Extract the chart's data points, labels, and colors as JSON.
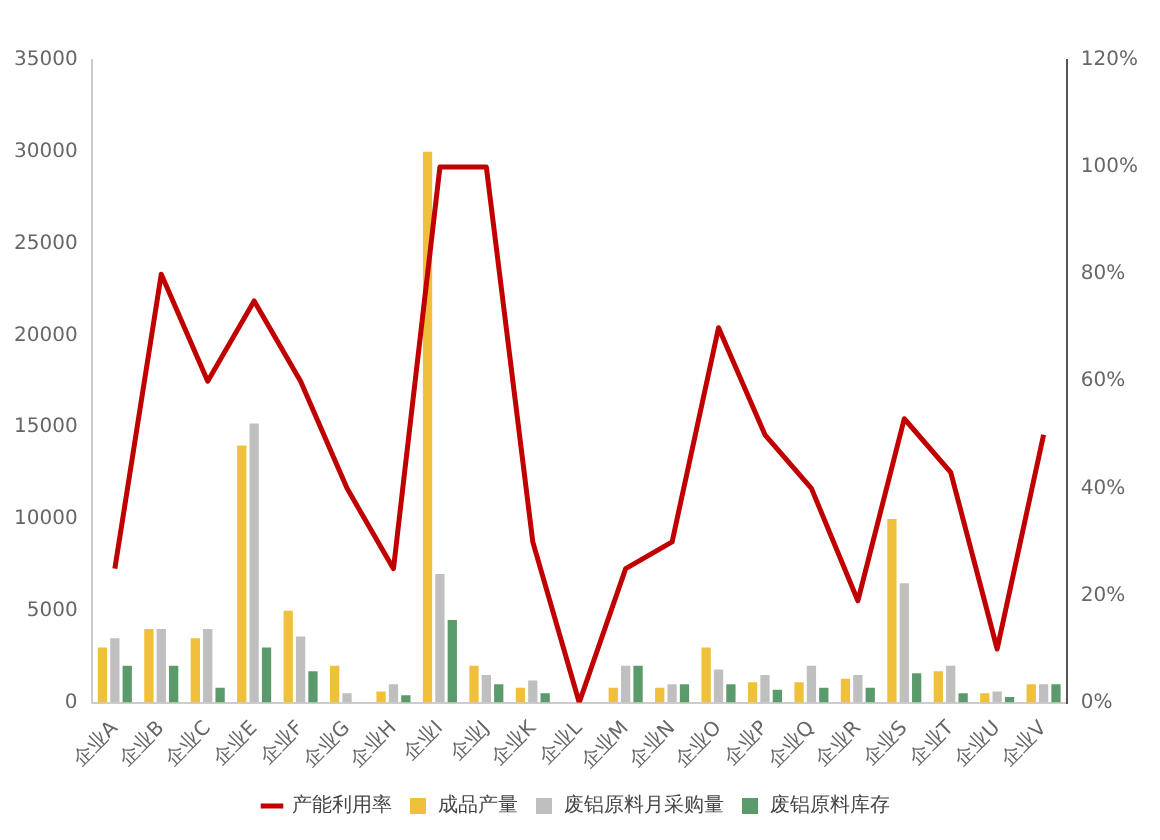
{
  "chart_data": {
    "type": "bar",
    "categories": [
      "企业A",
      "企业B",
      "企业C",
      "企业E",
      "企业F",
      "企业G",
      "企业H",
      "企业I",
      "企业J",
      "企业K",
      "企业L",
      "企业M",
      "企业N",
      "企业O",
      "企业P",
      "企业Q",
      "企业R",
      "企业S",
      "企业T",
      "企业U",
      "企业V"
    ],
    "series": [
      {
        "name": "成品产量",
        "color": "#f0bf3c",
        "values": [
          3000,
          4000,
          3500,
          14000,
          5000,
          2000,
          600,
          30000,
          2000,
          800,
          0,
          800,
          800,
          3000,
          1100,
          1100,
          1300,
          10000,
          1700,
          500,
          1000
        ]
      },
      {
        "name": "废铝原料月采购量",
        "color": "#bfbfbf",
        "values": [
          3500,
          4000,
          4000,
          15200,
          3600,
          500,
          1000,
          7000,
          1500,
          1200,
          0,
          2000,
          1000,
          1800,
          1500,
          2000,
          1500,
          6500,
          2000,
          600,
          1000
        ]
      },
      {
        "name": "废铝原料库存",
        "color": "#5b9b6b",
        "values": [
          2000,
          2000,
          800,
          3000,
          1700,
          0,
          400,
          4500,
          1000,
          500,
          0,
          2000,
          1000,
          1000,
          700,
          800,
          800,
          1600,
          500,
          300,
          1000
        ]
      },
      {
        "name": "产能利用率",
        "type": "line",
        "axis": "y2",
        "color": "#c00000",
        "values": [
          25,
          80,
          60,
          75,
          60,
          40,
          25,
          100,
          100,
          30,
          0,
          25,
          30,
          70,
          50,
          40,
          19,
          53,
          43,
          10,
          50
        ]
      }
    ],
    "ylim": [
      0,
      35000
    ],
    "yticks": [
      0,
      5000,
      10000,
      15000,
      20000,
      25000,
      30000,
      35000
    ],
    "y2lim": [
      0,
      120
    ],
    "y2ticks": [
      {
        "value": 0,
        "label": "0%"
      },
      {
        "value": 20,
        "label": "20%"
      },
      {
        "value": 40,
        "label": "40%"
      },
      {
        "value": 60,
        "label": "60%"
      },
      {
        "value": 80,
        "label": "80%"
      },
      {
        "value": 100,
        "label": "100%"
      },
      {
        "value": 120,
        "label": "120%"
      }
    ],
    "grid": false,
    "legend": "bottom",
    "marker": "none"
  }
}
